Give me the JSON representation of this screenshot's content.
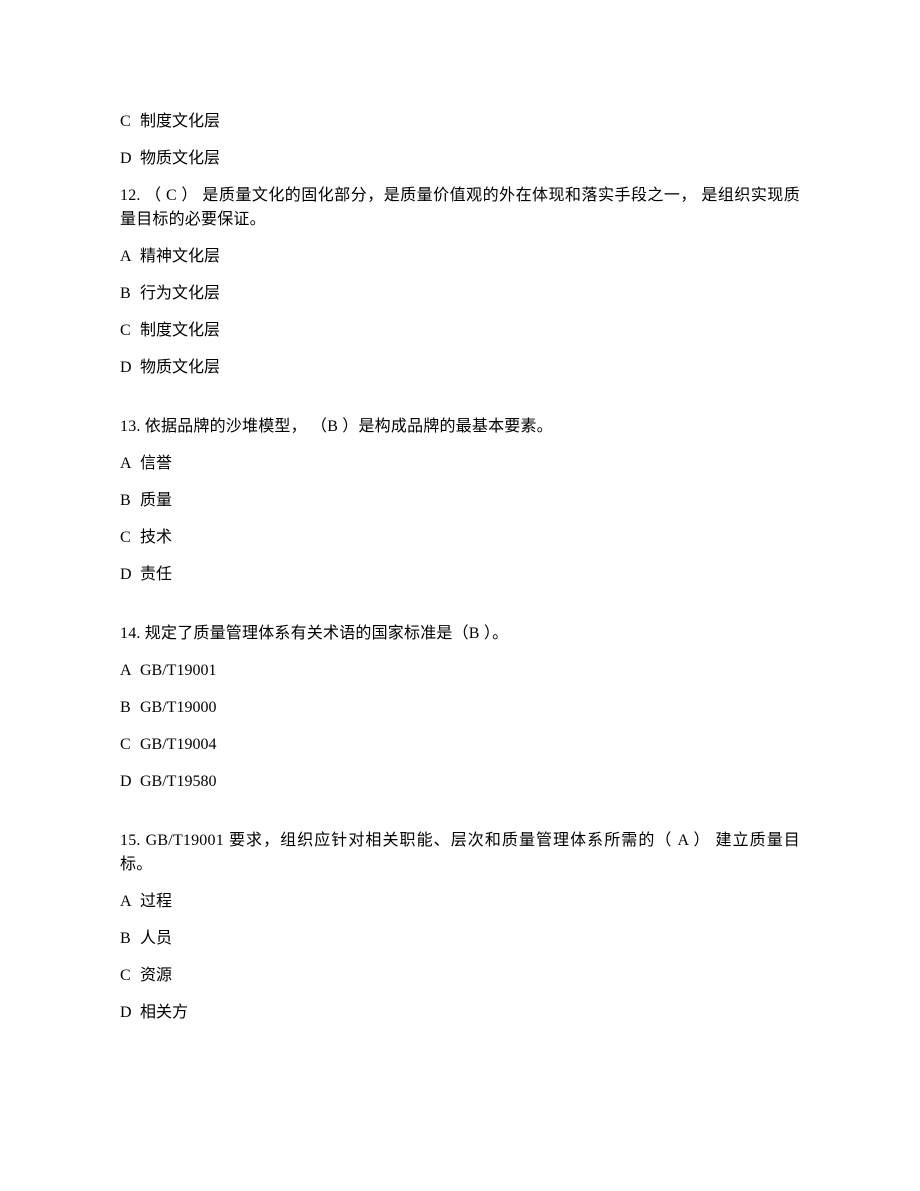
{
  "pre_options": [
    {
      "label": "C",
      "text": "制度文化层"
    },
    {
      "label": "D",
      "text": "物质文化层"
    }
  ],
  "questions": [
    {
      "number": "12.",
      "text": " （ C ） 是质量文化的固化部分，是质量价值观的外在体现和落实手段之一， 是组织实现质量目标的必要保证。",
      "options": [
        {
          "label": "A",
          "text": "精神文化层"
        },
        {
          "label": "B",
          "text": "行为文化层"
        },
        {
          "label": "C",
          "text": "制度文化层"
        },
        {
          "label": "D",
          "text": "物质文化层"
        }
      ]
    },
    {
      "number": "13.",
      "text": " 依据品牌的沙堆模型， （B ）是构成品牌的最基本要素。",
      "options": [
        {
          "label": "A",
          "text": "信誉"
        },
        {
          "label": "B",
          "text": "质量"
        },
        {
          "label": "C",
          "text": "技术"
        },
        {
          "label": "D",
          "text": "责任"
        }
      ]
    },
    {
      "number": "14.",
      "text": " 规定了质量管理体系有关术语的国家标准是（B ）。",
      "options": [
        {
          "label": "A",
          "text": "GB/T19001"
        },
        {
          "label": "B",
          "text": "GB/T19000"
        },
        {
          "label": "C",
          "text": "GB/T19004"
        },
        {
          "label": "D",
          "text": "GB/T19580"
        }
      ]
    },
    {
      "number": "15.",
      "text": " GB/T19001 要求，组织应针对相关职能、层次和质量管理体系所需的（ A ） 建立质量目标。",
      "options": [
        {
          "label": "A",
          "text": "过程"
        },
        {
          "label": "B",
          "text": "人员"
        },
        {
          "label": "C",
          "text": "资源"
        },
        {
          "label": "D",
          "text": "相关方"
        }
      ]
    }
  ]
}
